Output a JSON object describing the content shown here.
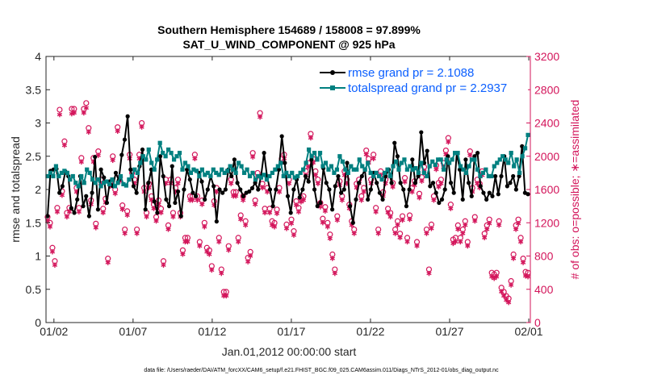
{
  "chart_data": {
    "type": "line",
    "title_line1": "Southern Hemisphere 154689 / 158008 = 97.899%",
    "title_line2": "SAT_U_WIND_COMPONENT @ 925 hPa",
    "xlabel": "Jan.01,2012 00:00:00 start",
    "ylabel_left": "rmse and totalspread",
    "ylabel_right": "# of obs: o=possible; ∗=assimilated",
    "footer": "data file: /Users/raeder/DAI/ATM_forcXX/CAM6_setup/f.e21.FHIST_BGC.f09_025.CAM6assim.011/Diags_NTrS_2012-01/obs_diag_output.nc",
    "x_tick_labels": [
      "01/02",
      "01/07",
      "01/12",
      "01/17",
      "01/22",
      "01/27",
      "02/01"
    ],
    "x_tick_days": [
      1,
      6,
      11,
      16,
      21,
      26,
      31
    ],
    "xlim": [
      0.5,
      31.1
    ],
    "ylim_left": [
      0,
      4
    ],
    "y_left_ticks": [
      "0",
      "0.5",
      "1",
      "1.5",
      "2",
      "2.5",
      "3",
      "3.5",
      "4"
    ],
    "ylim_right": [
      0,
      3200
    ],
    "y_right_ticks": [
      "0",
      "400",
      "800",
      "1200",
      "1600",
      "2000",
      "2400",
      "2800",
      "3200"
    ],
    "legend": [
      {
        "name": "rmse grand pr = 2.1088",
        "color": "#000000"
      },
      {
        "name": "totalspread grand pr = 2.2937",
        "color": "#008080"
      }
    ],
    "series": [
      {
        "name": "rmse",
        "color": "#000000",
        "axis": "left",
        "values": [
          1.6,
          2.28,
          2.3,
          2.31,
          1.95,
          2.05,
          2.27,
          2.2,
          1.72,
          1.65,
          1.85,
          2.2,
          1.75,
          1.9,
          1.6,
          1.95,
          2.49,
          1.7,
          2.3,
          2.18,
          1.8,
          2.12,
          2.05,
          2.25,
          2.14,
          2.52,
          2.75,
          3.1,
          2.3,
          2.05,
          1.95,
          2.35,
          2.6,
          1.7,
          2.1,
          2.3,
          1.82,
          1.65,
          2.5,
          2.2,
          1.85,
          1.75,
          2.35,
          1.8,
          1.97,
          1.6,
          2.0,
          2.3,
          2.15,
          1.95,
          1.9,
          2.25,
          2.12,
          1.85,
          2.0,
          2.2,
          2.05,
          1.52,
          2.0,
          1.95,
          2.0,
          2.3,
          2.2,
          2.45,
          2.1,
          2.0,
          1.9,
          1.95,
          1.97,
          2.02,
          2.1,
          2.0,
          2.2,
          2.55,
          2.2,
          2.0,
          1.75,
          2.0,
          2.3,
          2.8,
          2.4,
          1.9,
          1.65,
          2.0,
          2.15,
          1.88,
          2.0,
          2.2,
          2.12,
          2.45,
          2.0,
          1.75,
          1.8,
          2.32,
          2.1,
          2.0,
          1.7,
          2.05,
          2.2,
          1.95,
          2.0,
          2.4,
          1.75,
          1.5,
          1.85,
          2.1,
          2.2,
          2.3,
          1.85,
          2.0,
          2.25,
          2.1,
          1.95,
          1.85,
          2.2,
          2.3,
          2.1,
          2.7,
          2.5,
          2.1,
          2.0,
          1.75,
          2.0,
          2.45,
          2.1,
          2.2,
          2.86,
          2.4,
          2.58,
          2.05,
          2.1,
          1.95,
          1.8,
          1.85,
          2.0,
          2.5,
          2.1,
          1.95,
          2.55,
          2.3,
          1.85,
          2.45,
          2.1,
          1.9,
          2.5,
          2.55,
          2.05,
          1.95,
          1.85,
          1.95,
          1.9,
          2.2,
          1.93,
          2.2,
          2.5,
          2.05,
          2.1,
          2.2,
          2.0,
          2.2,
          2.65,
          1.95,
          1.93
        ]
      },
      {
        "name": "totalspread",
        "color": "#008080",
        "axis": "left",
        "values": [
          2.2,
          2.25,
          2.2,
          2.35,
          2.2,
          2.25,
          2.28,
          2.25,
          2.15,
          2.2,
          2.1,
          2.05,
          2.2,
          2.1,
          2.3,
          2.25,
          2.15,
          2.1,
          2.15,
          2.05,
          2.1,
          2.12,
          2.08,
          2.15,
          2.05,
          2.1,
          2.2,
          2.08,
          2.06,
          2.15,
          2.2,
          2.3,
          2.25,
          2.4,
          2.5,
          2.45,
          2.6,
          2.4,
          2.3,
          2.45,
          2.7,
          2.55,
          2.5,
          2.6,
          2.55,
          2.45,
          2.5,
          2.55,
          2.3,
          2.4,
          2.35,
          2.25,
          2.3,
          2.28,
          2.2,
          2.3,
          2.22,
          2.25,
          2.2,
          2.3,
          2.25,
          2.22,
          2.3,
          2.25,
          2.28,
          2.35,
          2.3,
          2.25,
          2.4,
          2.35,
          2.25,
          2.3,
          2.2,
          2.25,
          2.15,
          2.2,
          2.18,
          2.22,
          2.15,
          2.2,
          2.25,
          2.3,
          2.35,
          2.4,
          2.2,
          2.25,
          2.2,
          2.25,
          2.18,
          2.2,
          2.25,
          2.3,
          2.4,
          2.6,
          2.5,
          2.55,
          2.45,
          2.55,
          2.35,
          2.4,
          2.3,
          2.35,
          2.25,
          2.3,
          2.5,
          2.42,
          2.3,
          2.25,
          2.35,
          2.3,
          2.3,
          2.45,
          2.35,
          2.3,
          2.4,
          2.25,
          2.2,
          2.25,
          2.2,
          2.15,
          2.25,
          2.3,
          2.2,
          2.35,
          2.42,
          2.3,
          2.4,
          2.45,
          2.3,
          2.35,
          2.3,
          2.32,
          2.25,
          2.4,
          2.25,
          2.2,
          2.35,
          2.42,
          2.37,
          2.45,
          2.45,
          2.3,
          2.45,
          2.4,
          2.45,
          2.55,
          2.55,
          2.35,
          2.3,
          2.25,
          2.35,
          2.45,
          2.45,
          2.3,
          2.2,
          2.25,
          2.3,
          2.2,
          2.2,
          2.35,
          2.4,
          2.45,
          2.5,
          2.45,
          2.4,
          2.55,
          2.35,
          2.45,
          2.25,
          2.5,
          2.62,
          2.82
        ]
      },
      {
        "name": "possible",
        "color": "#d3145a",
        "axis": "right",
        "marker": "o",
        "values": [
          1250,
          1180,
          880,
          720,
          1360,
          2540,
          1560,
          2160,
          1300,
          1360,
          2550,
          2550,
          1600,
          1360,
          1960,
          2550,
          2620,
          2320,
          1450,
          1960,
          1170,
          2040,
          1700,
          1350,
          1470,
          750,
          1670,
          1980,
          1580,
          2330,
          1730,
          1390,
          1100,
          1320,
          2000,
          1780,
          1700,
          1100,
          2000,
          2380,
          1600,
          1300,
          1650,
          1500,
          1400,
          1250,
          1450,
          1350,
          720,
          1700,
          1150,
          1700,
          1300,
          1600,
          1700,
          1300,
          850,
          1000,
          1000,
          1500,
          1500,
          2000,
          1500,
          950,
          1450,
          1180,
          880,
          850,
          660,
          1440,
          1600,
          1000,
          620,
          350,
          350,
          900,
          1700,
          1550,
          1550,
          1000,
          1270,
          1500,
          1200,
          760,
          830,
          2020,
          1450,
          1780,
          2500,
          1650,
          1350,
          1600,
          1350,
          1200,
          1180,
          1340,
          1600,
          1950,
          2000,
          1160,
          1700,
          1220,
          1080,
          1440,
          1360,
          1480,
          1500,
          1800,
          1900,
          2250,
          1950,
          1800,
          1700,
          1420,
          1230,
          1370,
          1180,
          1040,
          800,
          620,
          1260,
          1680,
          1500,
          1800,
          1700,
          1400,
          1200,
          1100,
          1650,
          1700,
          1500,
          1600,
          2050,
          1950,
          1700,
          2000,
          1360,
          1100,
          1800,
          1550,
          1700,
          1350,
          1300,
          1660,
          1100,
          1200,
          1050,
          1260,
          1720,
          1000,
          1270,
          1600,
          1680,
          950,
          1530,
          1730,
          1850,
          1100,
          620,
          1160,
          1500,
          1870,
          1660,
          1700,
          1900,
          2050,
          2200,
          1400,
          980,
          1000,
          1150,
          1000,
          1100,
          1200,
          950,
          2040,
          1600,
          1250,
          1700,
          1650,
          1800,
          1050,
          1150,
          1220,
          580,
          560,
          580,
          1200,
          400,
          350,
          300,
          270,
          480,
          800,
          1150,
          1220,
          1000,
          750,
          590,
          580
        ]
      },
      {
        "name": "assimilated",
        "color": "#d3145a",
        "axis": "right",
        "marker": "*",
        "values": [
          1240,
          1170,
          870,
          710,
          1350,
          2520,
          1550,
          2150,
          1290,
          1350,
          2530,
          2540,
          1590,
          1350,
          1950,
          2540,
          2600,
          2310,
          1440,
          1950,
          1160,
          2030,
          1690,
          1340,
          1460,
          740,
          1660,
          1970,
          1570,
          2320,
          1720,
          1380,
          1090,
          1310,
          1990,
          1770,
          1690,
          1090,
          1990,
          2370,
          1590,
          1290,
          1640,
          1490,
          1390,
          1240,
          1440,
          1340,
          710,
          1690,
          1140,
          1690,
          1290,
          1590,
          1690,
          1290,
          840,
          990,
          990,
          1490,
          1490,
          1990,
          1490,
          940,
          1440,
          1170,
          870,
          840,
          650,
          1430,
          1590,
          990,
          610,
          340,
          340,
          890,
          1690,
          1540,
          1540,
          990,
          1260,
          1490,
          1190,
          750,
          820,
          2010,
          1440,
          1770,
          2490,
          1640,
          1340,
          1590,
          1340,
          1190,
          1170,
          1330,
          1590,
          1940,
          1990,
          1150,
          1690,
          1210,
          1070,
          1430,
          1350,
          1470,
          1490,
          1790,
          1890,
          2240,
          1940,
          1790,
          1690,
          1410,
          1220,
          1360,
          1170,
          1030,
          790,
          610,
          1250,
          1670,
          1490,
          1790,
          1690,
          1390,
          1190,
          1090,
          1640,
          1690,
          1490,
          1590,
          2040,
          1940,
          1690,
          1990,
          1350,
          1090,
          1790,
          1540,
          1690,
          1340,
          1290,
          1650,
          1090,
          1190,
          1040,
          1250,
          1710,
          990,
          1260,
          1590,
          1670,
          940,
          1520,
          1720,
          1840,
          1090,
          610,
          1150,
          1490,
          1860,
          1650,
          1690,
          1890,
          2040,
          2190,
          1390,
          970,
          990,
          1140,
          990,
          1090,
          1190,
          940,
          2030,
          1590,
          1240,
          1690,
          1640,
          1790,
          1040,
          1140,
          1210,
          570,
          550,
          570,
          1190,
          390,
          340,
          290,
          260,
          470,
          790,
          1140,
          1210,
          990,
          740,
          580,
          570
        ]
      }
    ]
  }
}
